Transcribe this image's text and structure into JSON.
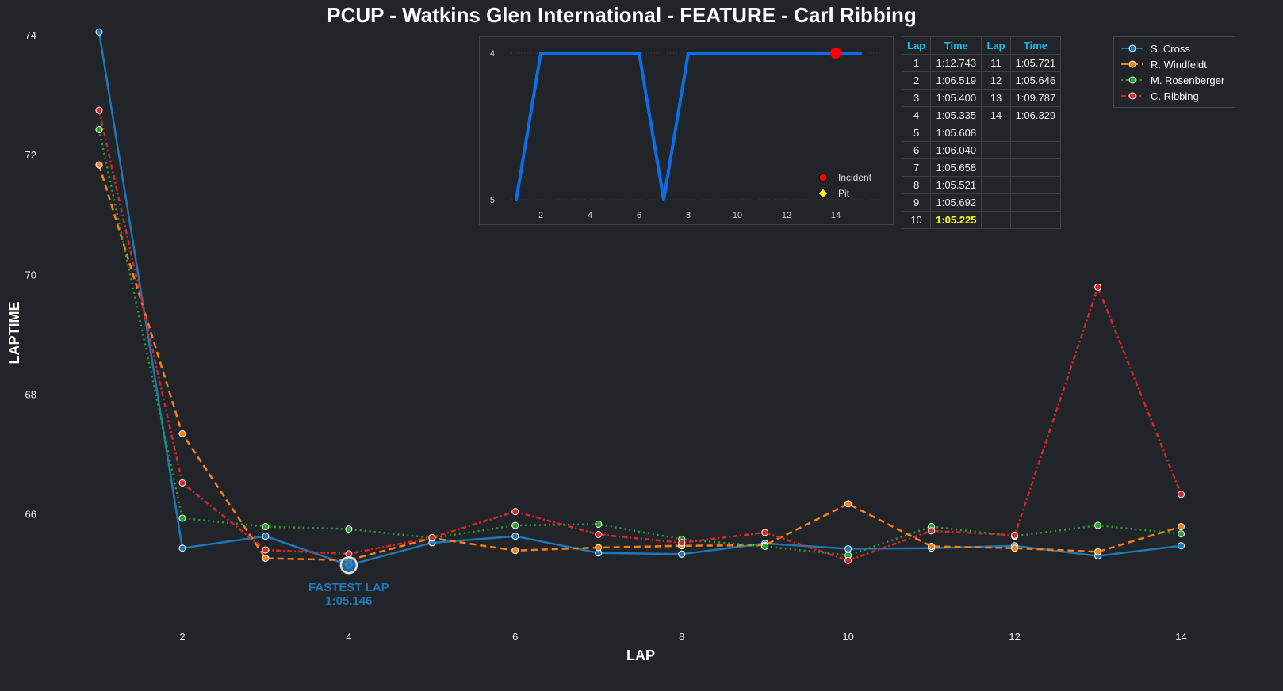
{
  "chart_data": {
    "type": "line",
    "title": "PCUP - Watkins Glen International - FEATURE - Carl Ribbing",
    "xlabel": "LAP",
    "ylabel": "LAPTIME",
    "x": [
      1,
      2,
      3,
      4,
      5,
      6,
      7,
      8,
      9,
      10,
      11,
      12,
      13,
      14
    ],
    "xticks": [
      2,
      4,
      6,
      8,
      10,
      12,
      14
    ],
    "yticks": [
      66,
      68,
      70,
      72,
      74
    ],
    "ylim": [
      64.13,
      74.12
    ],
    "xlim": [
      0.6,
      14.3
    ],
    "legend_position": "top-right",
    "series": [
      {
        "name": "S. Cross",
        "color": "#1f77b4",
        "dash": "",
        "values": [
          74.05,
          65.43,
          65.63,
          65.146,
          65.52,
          65.63,
          65.35,
          65.33,
          65.51,
          65.42,
          65.43,
          65.47,
          65.3,
          65.47
        ]
      },
      {
        "name": "R. Windfeldt",
        "color": "#ff7f0e",
        "dash": "8,5",
        "values": [
          71.83,
          67.34,
          65.26,
          65.23,
          65.6,
          65.39,
          65.44,
          65.47,
          65.48,
          66.17,
          65.46,
          65.43,
          65.37,
          65.79
        ]
      },
      {
        "name": "M. Rosenberger",
        "color": "#2ca02c",
        "dash": "2,4",
        "values": [
          72.42,
          65.93,
          65.79,
          65.75,
          65.6,
          65.81,
          65.83,
          65.58,
          65.46,
          65.31,
          65.79,
          65.63,
          65.81,
          65.67
        ]
      },
      {
        "name": "C. Ribbing",
        "color": "#d62728",
        "dash": "6,3,2,3",
        "values": [
          72.743,
          66.519,
          65.4,
          65.335,
          65.608,
          66.04,
          65.658,
          65.521,
          65.692,
          65.225,
          65.721,
          65.646,
          69.787,
          66.329
        ]
      }
    ],
    "annotation": {
      "label": "FASTEST LAP",
      "time": "1:05.146",
      "lap": 4,
      "value": 65.146,
      "color": "#1f77b4"
    }
  },
  "inset": {
    "type": "line",
    "x": [
      1,
      2,
      3,
      4,
      5,
      6,
      7,
      8,
      9,
      10,
      11,
      12,
      13,
      14,
      15
    ],
    "values": [
      5,
      4,
      4,
      4,
      4,
      4,
      5,
      4,
      4,
      4,
      4,
      4,
      4,
      4,
      4
    ],
    "xticks": [
      2,
      4,
      6,
      8,
      10,
      12,
      14
    ],
    "yticks": [
      4,
      5
    ],
    "color": "#0a6fe6",
    "incidents": [
      14
    ],
    "legend": {
      "incident": "Incident",
      "pit": "Pit"
    }
  },
  "table": {
    "headers": [
      "Lap",
      "Time",
      "Lap",
      "Time"
    ],
    "rows": [
      [
        "1",
        "1:12.743",
        "11",
        "1:05.721"
      ],
      [
        "2",
        "1:06.519",
        "12",
        "1:05.646"
      ],
      [
        "3",
        "1:05.400",
        "13",
        "1:09.787"
      ],
      [
        "4",
        "1:05.335",
        "14",
        "1:06.329"
      ],
      [
        "5",
        "1:05.608",
        "",
        ""
      ],
      [
        "6",
        "1:06.040",
        "",
        ""
      ],
      [
        "7",
        "1:05.658",
        "",
        ""
      ],
      [
        "8",
        "1:05.521",
        "",
        ""
      ],
      [
        "9",
        "1:05.692",
        "",
        ""
      ],
      [
        "10",
        "1:05.225",
        "",
        ""
      ]
    ],
    "best_row": 9
  }
}
